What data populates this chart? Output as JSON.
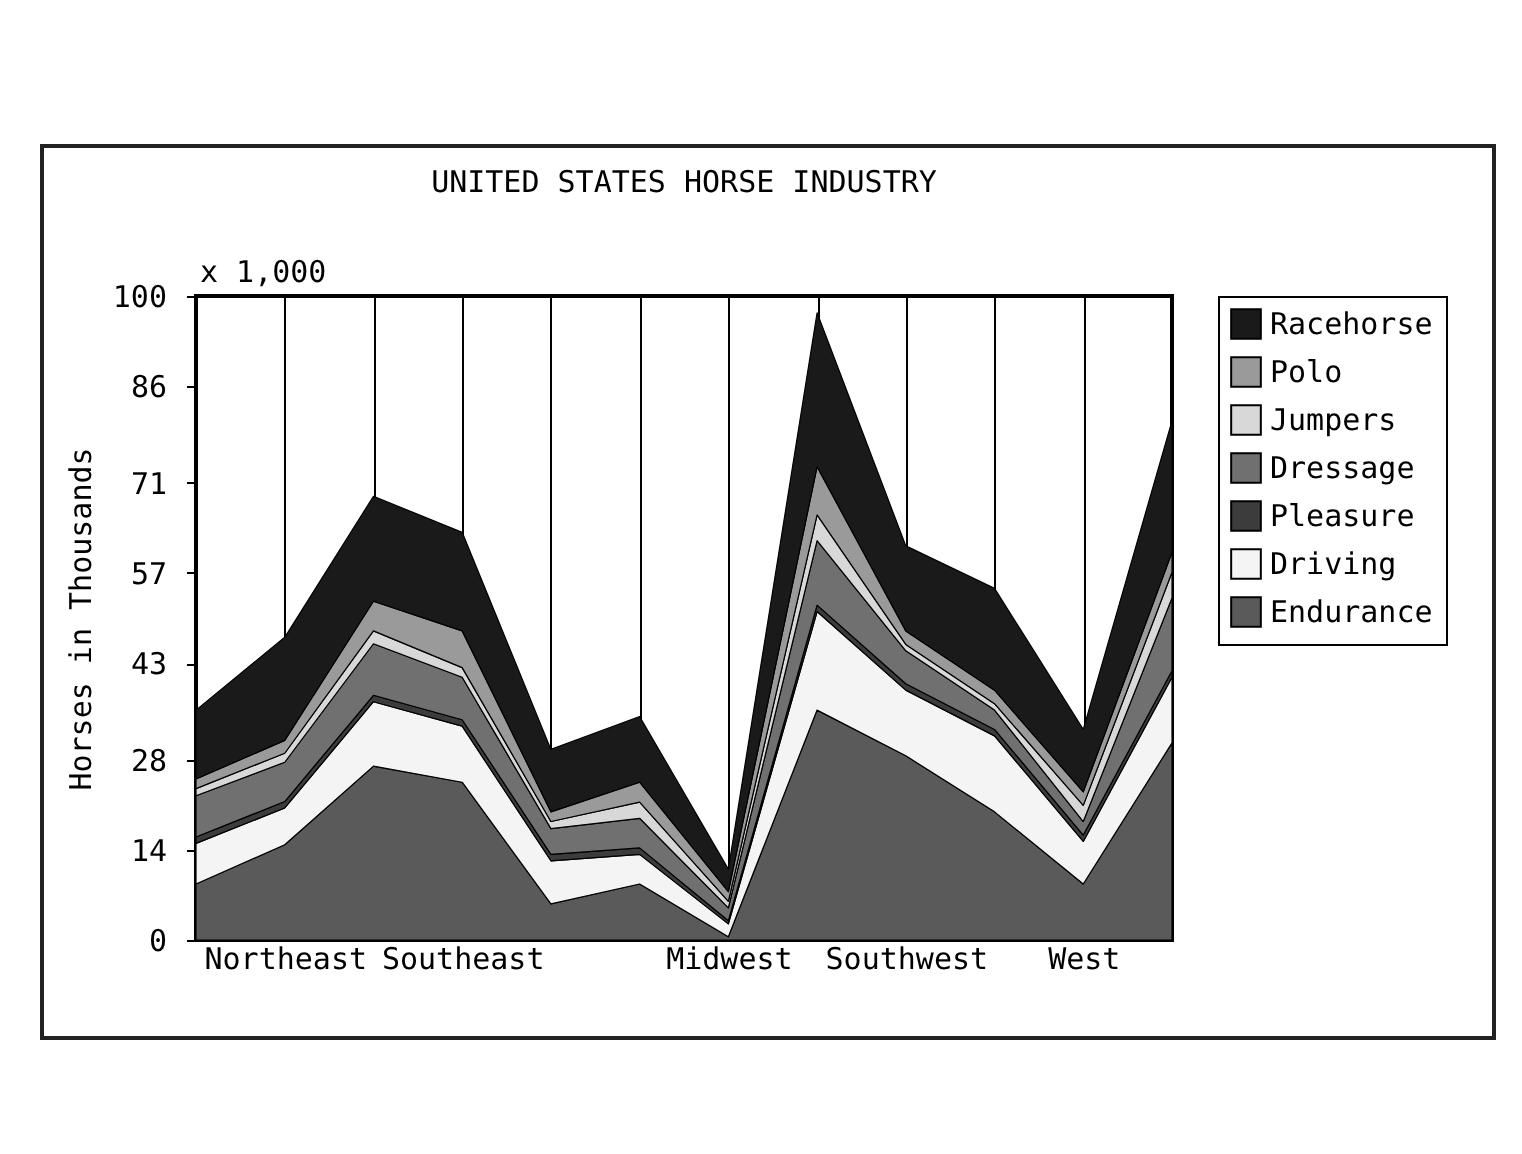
{
  "chart_data": {
    "type": "area",
    "stacked": true,
    "title": "UNITED STATES HORSE INDUSTRY",
    "ylabel": "Horses in Thousands",
    "annotations": [
      "x 1,000"
    ],
    "categories": [
      null,
      "Northeast",
      null,
      "Southeast",
      null,
      null,
      "Midwest",
      null,
      "Southwest",
      null,
      "West",
      null
    ],
    "series": [
      {
        "name": "Endurance",
        "color": "#5a5a5a",
        "values": [
          8.7,
          14.8,
          27,
          24.5,
          5.6,
          8.7,
          0.5,
          35.7,
          28.6,
          19.9,
          8.7,
          30.6
        ]
      },
      {
        "name": "Driving",
        "color": "#f4f4f4",
        "values": [
          6.3,
          5.7,
          10,
          8.7,
          6.7,
          4.6,
          2,
          15.3,
          10.2,
          11.8,
          6.6,
          10.2
        ]
      },
      {
        "name": "Pleasure",
        "color": "#3c3c3c",
        "values": [
          1,
          1,
          1,
          1,
          1,
          1,
          0.5,
          1,
          1,
          1,
          1,
          1
        ]
      },
      {
        "name": "Dressage",
        "color": "#707070",
        "values": [
          6.4,
          6.1,
          8,
          6.6,
          4,
          4.6,
          2,
          10,
          5.1,
          3,
          2.1,
          11.3
        ]
      },
      {
        "name": "Jumpers",
        "color": "#d8d8d8",
        "values": [
          1.1,
          1.4,
          2,
          1.5,
          1.1,
          2.5,
          1,
          4,
          1,
          1,
          2.5,
          4
        ]
      },
      {
        "name": "Polo",
        "color": "#9a9a9a",
        "values": [
          1.5,
          2,
          4.6,
          5.7,
          1.5,
          3.1,
          1.5,
          7.5,
          2.1,
          2.1,
          2.1,
          3.1
        ]
      },
      {
        "name": "Racehorse",
        "color": "#1a1a1a",
        "values": [
          10.7,
          16,
          16.3,
          15.3,
          9.7,
          10.2,
          3.5,
          23.9,
          13.2,
          15.8,
          9.7,
          20.4
        ]
      }
    ],
    "ylim": [
      0,
      100
    ],
    "yticks": [
      0,
      14,
      28,
      43,
      57,
      71,
      86,
      100
    ],
    "grid": "x",
    "legend": "right"
  }
}
